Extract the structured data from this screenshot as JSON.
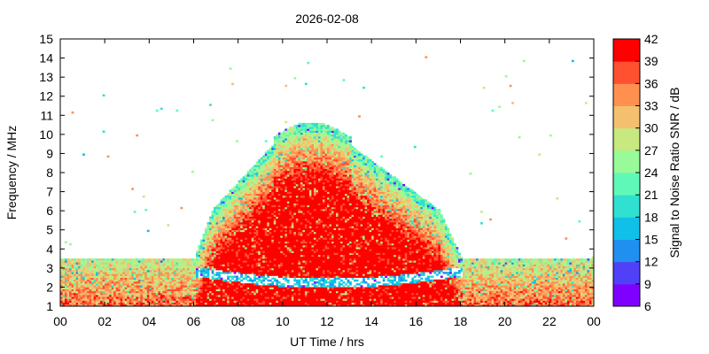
{
  "chart_data": {
    "type": "heatmap",
    "title": "2026-02-08",
    "xlabel": "UT Time / hrs",
    "ylabel": "Frequency / MHz",
    "colorbar_label": "Signal to Noise Ratio SNR / dB",
    "xlim": [
      0,
      24
    ],
    "ylim": [
      1,
      15
    ],
    "x_tick_labels": [
      "00",
      "02",
      "04",
      "06",
      "08",
      "10",
      "12",
      "14",
      "16",
      "18",
      "20",
      "22",
      "00"
    ],
    "y_tick_labels": [
      "1",
      "2",
      "3",
      "4",
      "5",
      "6",
      "7",
      "8",
      "9",
      "10",
      "11",
      "12",
      "13",
      "14",
      "15"
    ],
    "colorbar_range": [
      6,
      42
    ],
    "colorbar_tick_labels": [
      "6",
      "9",
      "12",
      "15",
      "18",
      "21",
      "24",
      "27",
      "30",
      "33",
      "36",
      "39",
      "42"
    ],
    "colorbar_colors": [
      "#8000ff",
      "#5040f8",
      "#2090f0",
      "#10c0e8",
      "#30e0d0",
      "#60f8b8",
      "#98fa98",
      "#c8e880",
      "#f4c070",
      "#ff9050",
      "#ff5030",
      "#ff0000"
    ],
    "features": {
      "lower_band_mhz": [
        1,
        3.5
      ],
      "upper_max_mhz": 10.2,
      "daytime_hours": [
        6.0,
        18.0
      ]
    }
  }
}
